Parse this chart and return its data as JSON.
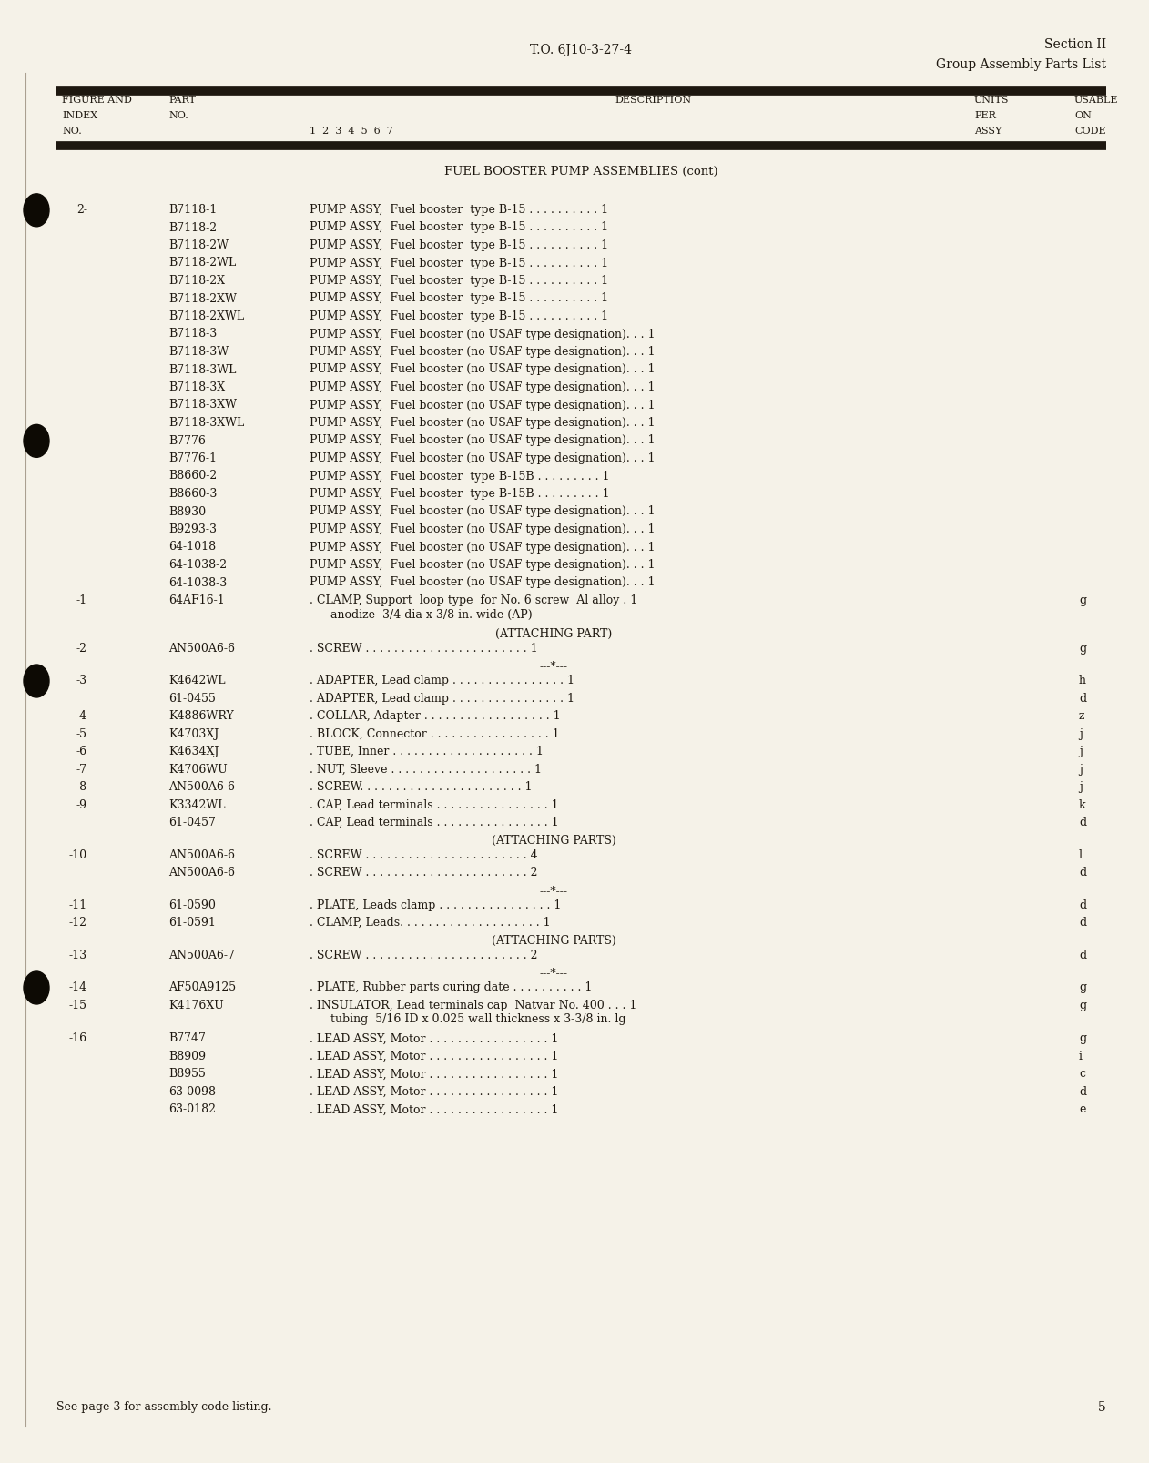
{
  "page_bg": "#f5f2e8",
  "text_color": "#1e1810",
  "top_center_text": "T.O. 6J10-3-27-4",
  "top_right_line1": "Section II",
  "top_right_line2": "Group Assembly Parts List",
  "section_title": "FUEL BOOSTER PUMP ASSEMBLIES (cont)",
  "footer_text": "See page 3 for assembly code listing.",
  "page_number": "5",
  "rows": [
    {
      "fig": "2-",
      "part": "B7118-1",
      "d1": "PUMP ASSY,  Fuel booster  type B-15 . . . . . . . . . . 1",
      "d2": "",
      "code": ""
    },
    {
      "fig": "",
      "part": "B7118-2",
      "d1": "PUMP ASSY,  Fuel booster  type B-15 . . . . . . . . . . 1",
      "d2": "",
      "code": ""
    },
    {
      "fig": "",
      "part": "B7118-2W",
      "d1": "PUMP ASSY,  Fuel booster  type B-15 . . . . . . . . . . 1",
      "d2": "",
      "code": ""
    },
    {
      "fig": "",
      "part": "B7118-2WL",
      "d1": "PUMP ASSY,  Fuel booster  type B-15 . . . . . . . . . . 1",
      "d2": "",
      "code": ""
    },
    {
      "fig": "",
      "part": "B7118-2X",
      "d1": "PUMP ASSY,  Fuel booster  type B-15 . . . . . . . . . . 1",
      "d2": "",
      "code": ""
    },
    {
      "fig": "",
      "part": "B7118-2XW",
      "d1": "PUMP ASSY,  Fuel booster  type B-15 . . . . . . . . . . 1",
      "d2": "",
      "code": ""
    },
    {
      "fig": "",
      "part": "B7118-2XWL",
      "d1": "PUMP ASSY,  Fuel booster  type B-15 . . . . . . . . . . 1",
      "d2": "",
      "code": ""
    },
    {
      "fig": "",
      "part": "B7118-3",
      "d1": "PUMP ASSY,  Fuel booster (no USAF type designation). . . 1",
      "d2": "",
      "code": ""
    },
    {
      "fig": "",
      "part": "B7118-3W",
      "d1": "PUMP ASSY,  Fuel booster (no USAF type designation). . . 1",
      "d2": "",
      "code": ""
    },
    {
      "fig": "",
      "part": "B7118-3WL",
      "d1": "PUMP ASSY,  Fuel booster (no USAF type designation). . . 1",
      "d2": "",
      "code": ""
    },
    {
      "fig": "",
      "part": "B7118-3X",
      "d1": "PUMP ASSY,  Fuel booster (no USAF type designation). . . 1",
      "d2": "",
      "code": ""
    },
    {
      "fig": "",
      "part": "B7118-3XW",
      "d1": "PUMP ASSY,  Fuel booster (no USAF type designation). . . 1",
      "d2": "",
      "code": ""
    },
    {
      "fig": "",
      "part": "B7118-3XWL",
      "d1": "PUMP ASSY,  Fuel booster (no USAF type designation). . . 1",
      "d2": "",
      "code": ""
    },
    {
      "fig": "",
      "part": "B7776",
      "d1": "PUMP ASSY,  Fuel booster (no USAF type designation). . . 1",
      "d2": "",
      "code": ""
    },
    {
      "fig": "",
      "part": "B7776-1",
      "d1": "PUMP ASSY,  Fuel booster (no USAF type designation). . . 1",
      "d2": "",
      "code": ""
    },
    {
      "fig": "",
      "part": "B8660-2",
      "d1": "PUMP ASSY,  Fuel booster  type B-15B . . . . . . . . . 1",
      "d2": "",
      "code": ""
    },
    {
      "fig": "",
      "part": "B8660-3",
      "d1": "PUMP ASSY,  Fuel booster  type B-15B . . . . . . . . . 1",
      "d2": "",
      "code": ""
    },
    {
      "fig": "",
      "part": "B8930",
      "d1": "PUMP ASSY,  Fuel booster (no USAF type designation). . . 1",
      "d2": "",
      "code": ""
    },
    {
      "fig": "",
      "part": "B9293-3",
      "d1": "PUMP ASSY,  Fuel booster (no USAF type designation). . . 1",
      "d2": "",
      "code": ""
    },
    {
      "fig": "",
      "part": "64-1018",
      "d1": "PUMP ASSY,  Fuel booster (no USAF type designation). . . 1",
      "d2": "",
      "code": ""
    },
    {
      "fig": "",
      "part": "64-1038-2",
      "d1": "PUMP ASSY,  Fuel booster (no USAF type designation). . . 1",
      "d2": "",
      "code": ""
    },
    {
      "fig": "",
      "part": "64-1038-3",
      "d1": "PUMP ASSY,  Fuel booster (no USAF type designation). . . 1",
      "d2": "",
      "code": ""
    },
    {
      "fig": "-1",
      "part": "64AF16-1",
      "d1": ". CLAMP, Support  loop type  for No. 6 screw  Al alloy . 1",
      "d2": "  anodize  3/4 dia x 3/8 in. wide (AP)",
      "code": "g"
    },
    {
      "fig": "ATT",
      "part": "",
      "d1": "(ATTACHING PART)",
      "d2": "",
      "code": ""
    },
    {
      "fig": "-2",
      "part": "AN500A6-6",
      "d1": ". SCREW . . . . . . . . . . . . . . . . . . . . . . . 1",
      "d2": "",
      "code": "g"
    },
    {
      "fig": "SEP",
      "part": "",
      "d1": "---*---",
      "d2": "",
      "code": ""
    },
    {
      "fig": "-3",
      "part": "K4642WL",
      "d1": ". ADAPTER, Lead clamp . . . . . . . . . . . . . . . . 1",
      "d2": "",
      "code": "h"
    },
    {
      "fig": "",
      "part": "61-0455",
      "d1": ". ADAPTER, Lead clamp . . . . . . . . . . . . . . . . 1",
      "d2": "",
      "code": "d"
    },
    {
      "fig": "-4",
      "part": "K4886WRY",
      "d1": ". COLLAR, Adapter . . . . . . . . . . . . . . . . . . 1",
      "d2": "",
      "code": "z"
    },
    {
      "fig": "-5",
      "part": "K4703XJ",
      "d1": ". BLOCK, Connector . . . . . . . . . . . . . . . . . 1",
      "d2": "",
      "code": "j"
    },
    {
      "fig": "-6",
      "part": "K4634XJ",
      "d1": ". TUBE, Inner . . . . . . . . . . . . . . . . . . . . 1",
      "d2": "",
      "code": "j"
    },
    {
      "fig": "-7",
      "part": "K4706WU",
      "d1": ". NUT, Sleeve . . . . . . . . . . . . . . . . . . . . 1",
      "d2": "",
      "code": "j"
    },
    {
      "fig": "-8",
      "part": "AN500A6-6",
      "d1": ". SCREW. . . . . . . . . . . . . . . . . . . . . . . 1",
      "d2": "",
      "code": "j"
    },
    {
      "fig": "-9",
      "part": "K3342WL",
      "d1": ". CAP, Lead terminals . . . . . . . . . . . . . . . . 1",
      "d2": "",
      "code": "k"
    },
    {
      "fig": "",
      "part": "61-0457",
      "d1": ". CAP, Lead terminals . . . . . . . . . . . . . . . . 1",
      "d2": "",
      "code": "d"
    },
    {
      "fig": "ATT",
      "part": "",
      "d1": "(ATTACHING PARTS)",
      "d2": "",
      "code": ""
    },
    {
      "fig": "-10",
      "part": "AN500A6-6",
      "d1": ". SCREW . . . . . . . . . . . . . . . . . . . . . . . 4",
      "d2": "",
      "code": "l"
    },
    {
      "fig": "",
      "part": "AN500A6-6",
      "d1": ". SCREW . . . . . . . . . . . . . . . . . . . . . . . 2",
      "d2": "",
      "code": "d"
    },
    {
      "fig": "SEP",
      "part": "",
      "d1": "---*---",
      "d2": "",
      "code": ""
    },
    {
      "fig": "-11",
      "part": "61-0590",
      "d1": ". PLATE, Leads clamp . . . . . . . . . . . . . . . . 1",
      "d2": "",
      "code": "d"
    },
    {
      "fig": "-12",
      "part": "61-0591",
      "d1": ". CLAMP, Leads. . . . . . . . . . . . . . . . . . . . 1",
      "d2": "",
      "code": "d"
    },
    {
      "fig": "ATT",
      "part": "",
      "d1": "(ATTACHING PARTS)",
      "d2": "",
      "code": ""
    },
    {
      "fig": "-13",
      "part": "AN500A6-7",
      "d1": ". SCREW . . . . . . . . . . . . . . . . . . . . . . . 2",
      "d2": "",
      "code": "d"
    },
    {
      "fig": "SEP",
      "part": "",
      "d1": "---*---",
      "d2": "",
      "code": ""
    },
    {
      "fig": "-14",
      "part": "AF50A9125",
      "d1": ". PLATE, Rubber parts curing date . . . . . . . . . . 1",
      "d2": "",
      "code": "g"
    },
    {
      "fig": "-15",
      "part": "K4176XU",
      "d1": ". INSULATOR, Lead terminals cap  Natvar No. 400 . . . 1",
      "d2": "  tubing  5/16 ID x 0.025 wall thickness x 3-3/8 in. lg",
      "code": "g"
    },
    {
      "fig": "-16",
      "part": "B7747",
      "d1": ". LEAD ASSY, Motor . . . . . . . . . . . . . . . . . 1",
      "d2": "",
      "code": "g"
    },
    {
      "fig": "",
      "part": "B8909",
      "d1": ". LEAD ASSY, Motor . . . . . . . . . . . . . . . . . 1",
      "d2": "",
      "code": "i"
    },
    {
      "fig": "",
      "part": "B8955",
      "d1": ". LEAD ASSY, Motor . . . . . . . . . . . . . . . . . 1",
      "d2": "",
      "code": "c"
    },
    {
      "fig": "",
      "part": "63-0098",
      "d1": ". LEAD ASSY, Motor . . . . . . . . . . . . . . . . . 1",
      "d2": "",
      "code": "d"
    },
    {
      "fig": "",
      "part": "63-0182",
      "d1": ". LEAD ASSY, Motor . . . . . . . . . . . . . . . . . 1",
      "d2": "",
      "code": "e"
    }
  ],
  "bullet_row_indices": [
    0,
    13,
    26,
    44
  ]
}
